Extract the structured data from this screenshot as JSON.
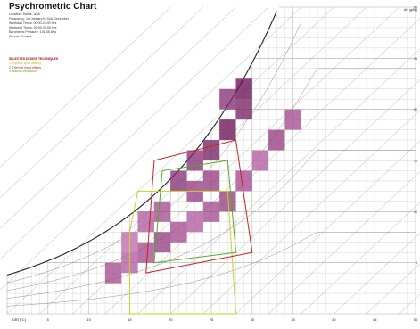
{
  "chart_data": {
    "type": "heatmap",
    "title": "Psychrometric Chart",
    "meta_lines": [
      "Location: Dallas, USA",
      "Frequency: 1st January to 31st December",
      "Weekday Times: 00:00-24:00 Hrs",
      "Weekend Times: 00:00-24:00 Hrs",
      "Barometric Pressure: 101.36 kPa",
      "Source: Ecotect"
    ],
    "selected_design_techniques": {
      "header": "SELECTED DESIGN TECHNIQUES",
      "items": [
        {
          "label": "1. Passive solar heating",
          "color": "#c8d02a"
        },
        {
          "label": "2. Thermal mass effects",
          "color": "#cc2020"
        },
        {
          "label": "3. Natural ventilation",
          "color": "#55aa22"
        }
      ]
    },
    "x_axis": {
      "label": "DBT(°C)",
      "ticks": [
        "5",
        "10",
        "15",
        "20",
        "25",
        "30",
        "35",
        "40",
        "45",
        "50"
      ]
    },
    "y_axis": {
      "label": "AH (g/kg)",
      "ticks": [
        "5",
        "10",
        "15",
        "20",
        "25",
        "30"
      ],
      "position": "right"
    },
    "cells": [
      {
        "t": 12,
        "w": 3,
        "v": 0.6
      },
      {
        "t": 14,
        "w": 4,
        "v": 0.5
      },
      {
        "t": 16,
        "w": 5,
        "v": 0.6
      },
      {
        "t": 18,
        "w": 6,
        "v": 0.7
      },
      {
        "t": 20,
        "w": 7,
        "v": 0.6
      },
      {
        "t": 22,
        "w": 8,
        "v": 0.5
      },
      {
        "t": 24,
        "w": 9,
        "v": 0.6
      },
      {
        "t": 26,
        "w": 10,
        "v": 0.7
      },
      {
        "t": 28,
        "w": 12,
        "v": 0.6
      },
      {
        "t": 30,
        "w": 14,
        "v": 0.5
      },
      {
        "t": 32,
        "w": 16,
        "v": 0.7
      },
      {
        "t": 34,
        "w": 18,
        "v": 0.6
      },
      {
        "t": 22,
        "w": 14,
        "v": 0.8
      },
      {
        "t": 24,
        "w": 15,
        "v": 0.9
      },
      {
        "t": 26,
        "w": 17,
        "v": 1.0
      },
      {
        "t": 28,
        "w": 19,
        "v": 0.9
      },
      {
        "t": 26,
        "w": 20,
        "v": 0.8
      },
      {
        "t": 28,
        "w": 21,
        "v": 1.0
      },
      {
        "t": 20,
        "w": 12,
        "v": 0.8
      },
      {
        "t": 22,
        "w": 11,
        "v": 0.7
      },
      {
        "t": 18,
        "w": 9,
        "v": 0.6
      },
      {
        "t": 16,
        "w": 8,
        "v": 0.5
      },
      {
        "t": 14,
        "w": 6,
        "v": 0.4
      },
      {
        "t": 24,
        "w": 12,
        "v": 0.7
      }
    ]
  }
}
